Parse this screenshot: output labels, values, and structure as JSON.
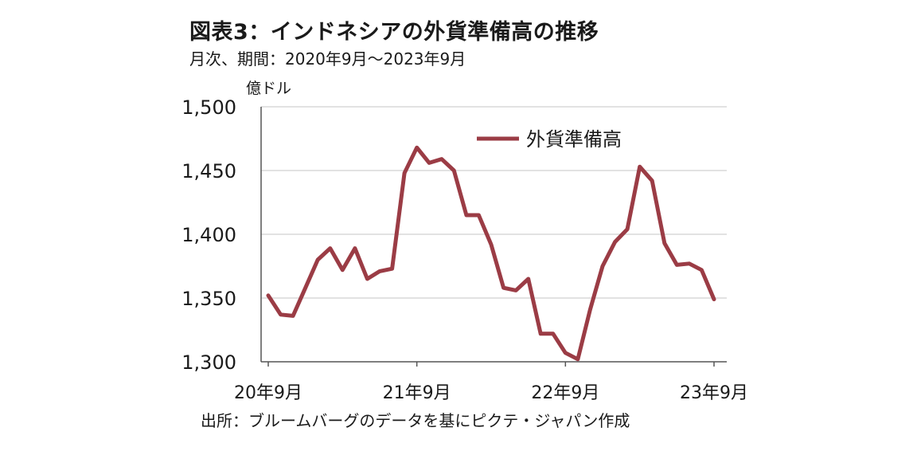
{
  "header": {
    "title": "図表3：インドネシアの外貨準備高の推移",
    "subtitle": "月次、期間：2020年9月～2023年9月"
  },
  "footer": {
    "source": "出所：ブルームバーグのデータを基にピクテ・ジャパン作成"
  },
  "colors": {
    "series": "#9b3c45",
    "grid": "#d9d9d9",
    "axis": "#555555"
  },
  "chart_data": {
    "type": "line",
    "ylabel": "億ドル",
    "ylim": [
      1300,
      1500
    ],
    "y_ticks": [
      1300,
      1350,
      1400,
      1450,
      1500
    ],
    "y_tick_labels": [
      "1,300",
      "1,350",
      "1,400",
      "1,450",
      "1,500"
    ],
    "x_tick_labels": [
      {
        "label": "20年9月",
        "index": 0
      },
      {
        "label": "21年9月",
        "index": 12
      },
      {
        "label": "22年9月",
        "index": 24
      },
      {
        "label": "23年9月",
        "index": 36
      }
    ],
    "grid": "horizontal",
    "legend_position": "top-right",
    "x": [
      "2020-09",
      "2020-10",
      "2020-11",
      "2020-12",
      "2021-01",
      "2021-02",
      "2021-03",
      "2021-04",
      "2021-05",
      "2021-06",
      "2021-07",
      "2021-08",
      "2021-09",
      "2021-10",
      "2021-11",
      "2021-12",
      "2022-01",
      "2022-02",
      "2022-03",
      "2022-04",
      "2022-05",
      "2022-06",
      "2022-07",
      "2022-08",
      "2022-09",
      "2022-10",
      "2022-11",
      "2022-12",
      "2023-01",
      "2023-02",
      "2023-03",
      "2023-04",
      "2023-05",
      "2023-06",
      "2023-07",
      "2023-08",
      "2023-09"
    ],
    "series": [
      {
        "name": "外貨準備高",
        "values": [
          1352,
          1337,
          1336,
          1358,
          1380,
          1389,
          1372,
          1389,
          1365,
          1371,
          1373,
          1448,
          1468,
          1456,
          1459,
          1450,
          1415,
          1415,
          1392,
          1358,
          1356,
          1365,
          1322,
          1322,
          1307,
          1302,
          1341,
          1375,
          1394,
          1404,
          1453,
          1442,
          1393,
          1376,
          1377,
          1372,
          1349
        ]
      }
    ]
  }
}
